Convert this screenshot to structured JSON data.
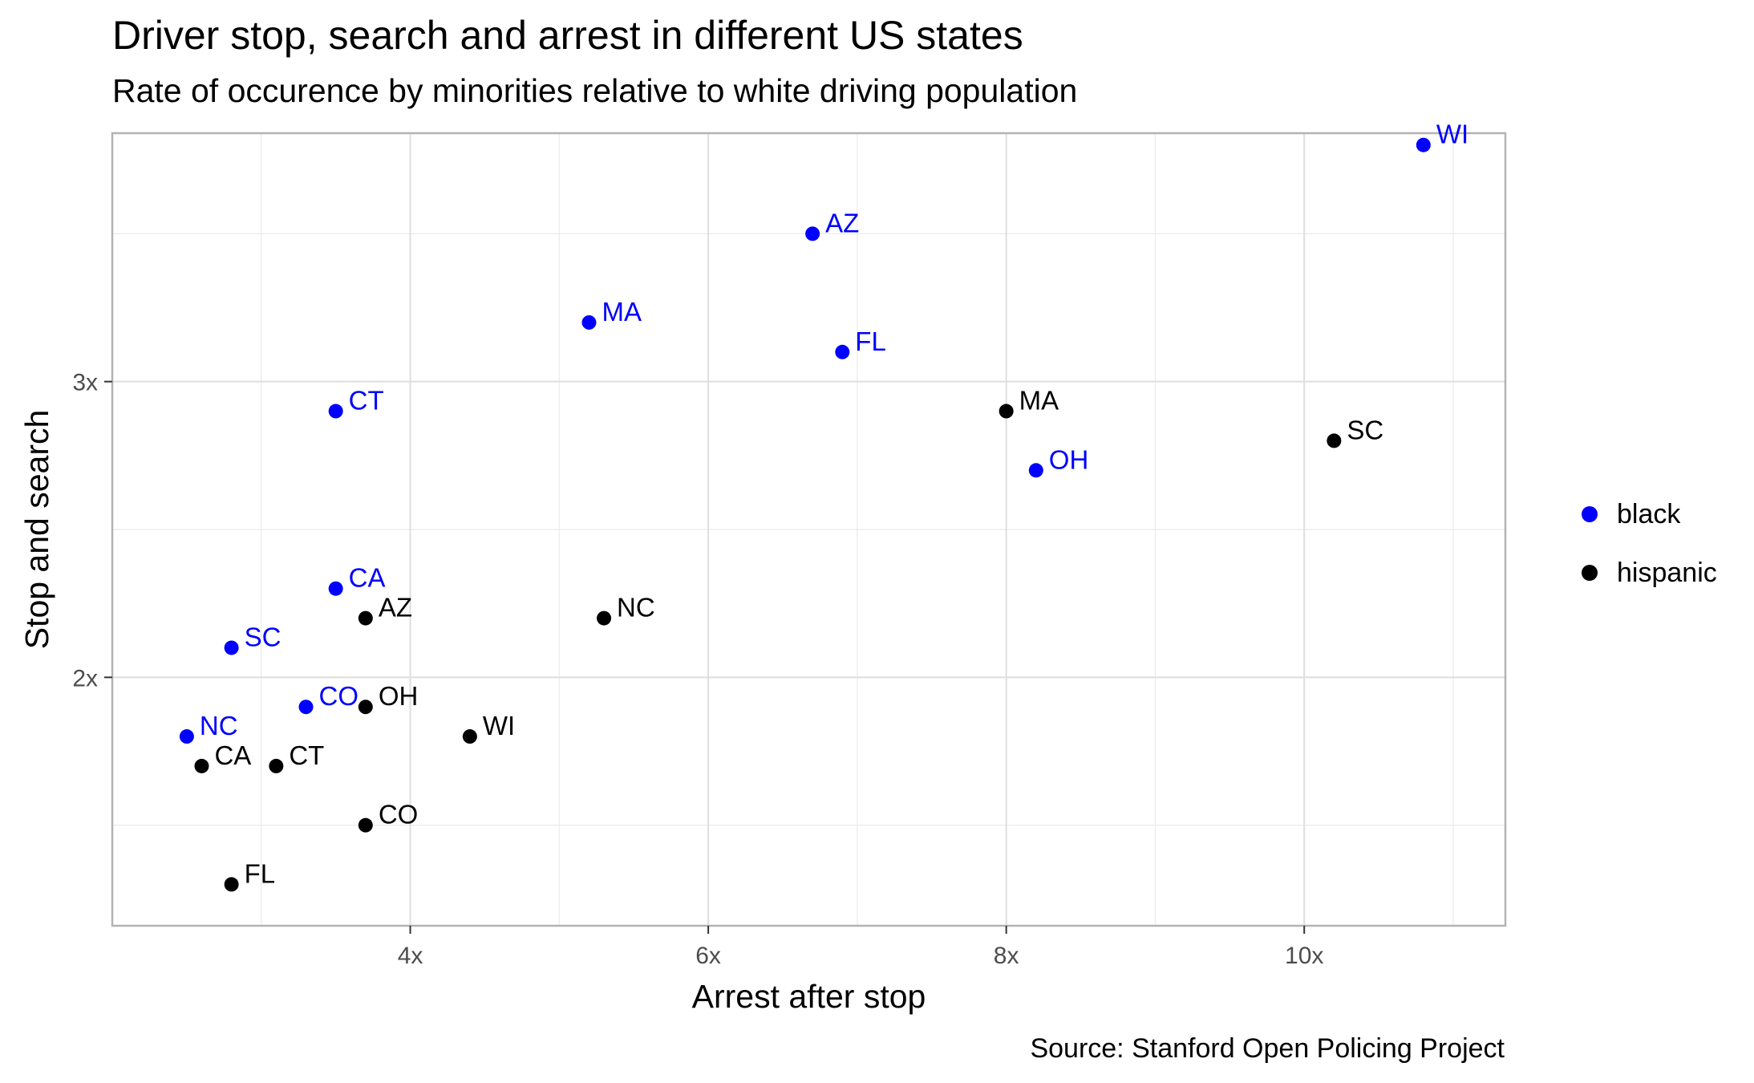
{
  "title": "Driver stop, search and arrest in different US states",
  "subtitle": "Rate of occurence by minorities relative to white driving population",
  "caption": "Source: Stanford Open Policing Project",
  "colors": {
    "black": "#0000ff",
    "hispanic": "#000000",
    "panel_border": "#b3b3b3",
    "grid": "#ebebeb",
    "tick_text": "#4d4d4d"
  },
  "legend": [
    {
      "key": "black",
      "label": "black",
      "color": "#0000ff"
    },
    {
      "key": "hispanic",
      "label": "hispanic",
      "color": "#000000"
    }
  ],
  "chart_data": {
    "type": "scatter",
    "title": "Driver stop, search and arrest in different US states",
    "subtitle": "Rate of occurence by minorities relative to white driving population",
    "xlabel": "Arrest after stop",
    "ylabel": "Stop and search",
    "xlim": [
      2.0,
      11.35
    ],
    "ylim": [
      1.16,
      3.84
    ],
    "x_ticks": [
      {
        "value": 4,
        "label": "4x"
      },
      {
        "value": 6,
        "label": "6x"
      },
      {
        "value": 8,
        "label": "8x"
      },
      {
        "value": 10,
        "label": "10x"
      }
    ],
    "y_ticks": [
      {
        "value": 2,
        "label": "2x"
      },
      {
        "value": 3,
        "label": "3x"
      }
    ],
    "grid": true,
    "legend_position": "right",
    "series": [
      {
        "name": "black",
        "color": "#0000ff",
        "points": [
          {
            "label": "WI",
            "x": 10.8,
            "y": 3.8
          },
          {
            "label": "AZ",
            "x": 6.7,
            "y": 3.5
          },
          {
            "label": "MA",
            "x": 5.2,
            "y": 3.2
          },
          {
            "label": "FL",
            "x": 6.9,
            "y": 3.1
          },
          {
            "label": "CT",
            "x": 3.5,
            "y": 2.9
          },
          {
            "label": "OH",
            "x": 8.2,
            "y": 2.7
          },
          {
            "label": "CA",
            "x": 3.5,
            "y": 2.3
          },
          {
            "label": "SC",
            "x": 2.8,
            "y": 2.1
          },
          {
            "label": "CO",
            "x": 3.3,
            "y": 1.9
          },
          {
            "label": "NC",
            "x": 2.5,
            "y": 1.8
          }
        ]
      },
      {
        "name": "hispanic",
        "color": "#000000",
        "points": [
          {
            "label": "MA",
            "x": 8.0,
            "y": 2.9
          },
          {
            "label": "SC",
            "x": 10.2,
            "y": 2.8
          },
          {
            "label": "AZ",
            "x": 3.7,
            "y": 2.2
          },
          {
            "label": "NC",
            "x": 5.3,
            "y": 2.2
          },
          {
            "label": "OH",
            "x": 3.7,
            "y": 1.9
          },
          {
            "label": "WI",
            "x": 4.4,
            "y": 1.8
          },
          {
            "label": "CA",
            "x": 2.6,
            "y": 1.7
          },
          {
            "label": "CT",
            "x": 3.1,
            "y": 1.7
          },
          {
            "label": "CO",
            "x": 3.7,
            "y": 1.5
          },
          {
            "label": "FL",
            "x": 2.8,
            "y": 1.3
          }
        ]
      }
    ]
  }
}
